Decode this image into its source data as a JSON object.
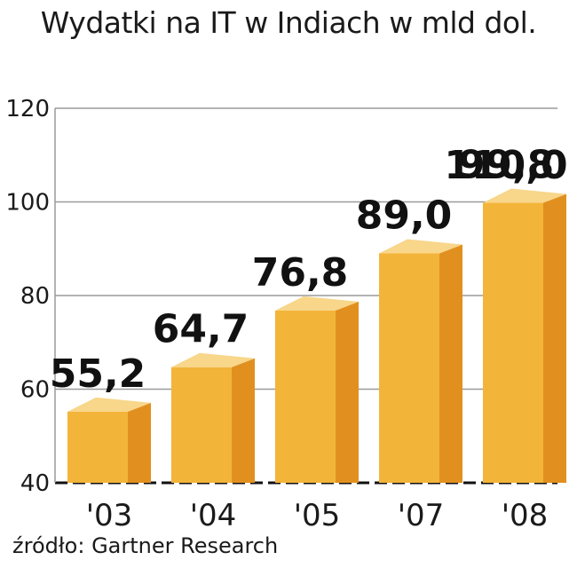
{
  "chart_data": {
    "type": "bar",
    "title": "Wydatki na IT w Indiach w mld dol.",
    "categories": [
      "'03",
      "'04",
      "'05",
      "'07",
      "'08"
    ],
    "values": [
      55.2,
      64.7,
      76.8,
      89.0,
      99.8
    ],
    "value_labels": [
      "55,2",
      "64,7",
      "76,8",
      "89,0",
      "99,8"
    ],
    "extra_values": [
      110.0
    ],
    "extra_value_labels": [
      "110,0"
    ],
    "yticks": [
      40,
      60,
      80,
      100,
      120
    ],
    "ylim": [
      40,
      120
    ],
    "grid": true,
    "xlabel": "",
    "ylabel": "",
    "source": "źródło: Gartner Research",
    "colors": {
      "front": "#F3B43A",
      "side": "#E1901F",
      "top": "#F8D68A",
      "grid": "#9a9a9a",
      "axis": "#111111"
    }
  }
}
